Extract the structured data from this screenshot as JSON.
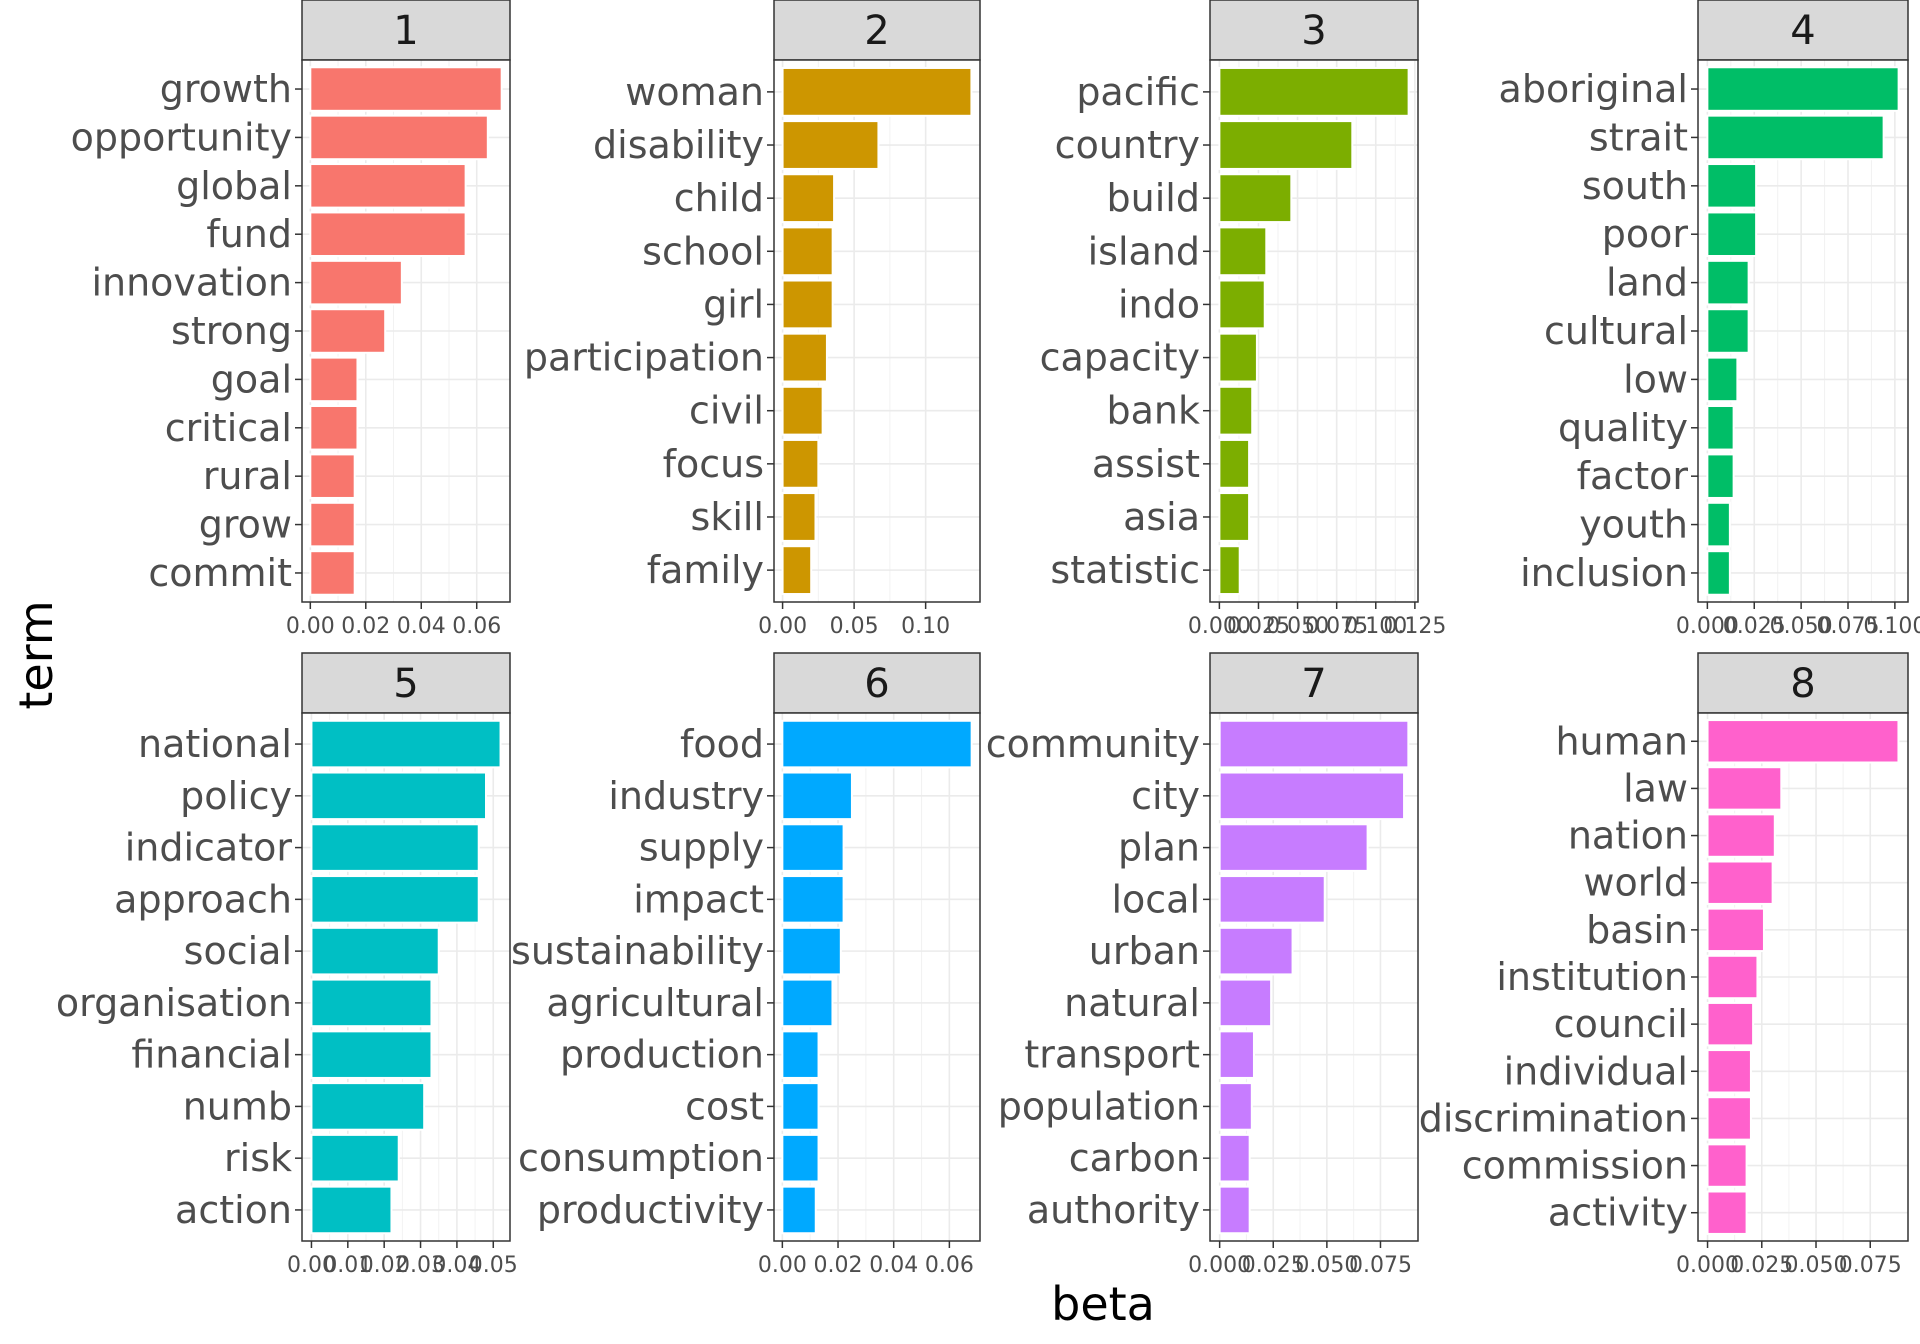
{
  "chart_data": {
    "type": "bar",
    "orientation": "horizontal",
    "layout": "facet-wrap 2 rows x 4 columns, independent scales",
    "xlabel": "beta",
    "ylabel": "term",
    "grid": true,
    "legend": "none",
    "facets": [
      {
        "label": "1",
        "color": "#F8766D",
        "categories": [
          "growth",
          "opportunity",
          "global",
          "fund",
          "innovation",
          "strong",
          "goal",
          "critical",
          "rural",
          "grow",
          "commit"
        ],
        "values": [
          0.069,
          0.064,
          0.056,
          0.056,
          0.033,
          0.027,
          0.017,
          0.017,
          0.016,
          0.016,
          0.016
        ],
        "xlim": [
          -0.003,
          0.072
        ],
        "xticks": [
          0,
          0.02,
          0.04,
          0.06
        ],
        "xtick_labels": [
          "0.00",
          "0.02",
          "0.04",
          "0.06"
        ]
      },
      {
        "label": "2",
        "color": "#CD9600",
        "categories": [
          "woman",
          "disability",
          "child",
          "school",
          "girl",
          "participation",
          "civil",
          "focus",
          "skill",
          "family"
        ],
        "values": [
          0.132,
          0.067,
          0.036,
          0.035,
          0.035,
          0.031,
          0.028,
          0.025,
          0.023,
          0.02
        ],
        "xlim": [
          -0.006,
          0.138
        ],
        "xticks": [
          0,
          0.05,
          0.1
        ],
        "xtick_labels": [
          "0.00",
          "0.05",
          "0.10"
        ]
      },
      {
        "label": "3",
        "color": "#7CAE00",
        "categories": [
          "pacific",
          "country",
          "build",
          "island",
          "indo",
          "capacity",
          "bank",
          "assist",
          "asia",
          "statistic"
        ],
        "values": [
          0.121,
          0.085,
          0.046,
          0.03,
          0.029,
          0.024,
          0.021,
          0.019,
          0.019,
          0.013
        ],
        "xlim": [
          -0.006,
          0.127
        ],
        "xticks": [
          0,
          0.025,
          0.05,
          0.075,
          0.1,
          0.125
        ],
        "xtick_labels": [
          "0.000",
          "0.025",
          "0.050",
          "0.075",
          "0.100",
          "0.125"
        ]
      },
      {
        "label": "4",
        "color": "#00BE67",
        "categories": [
          "aboriginal",
          "strait",
          "south",
          "poor",
          "land",
          "cultural",
          "low",
          "quality",
          "factor",
          "youth",
          "inclusion"
        ],
        "values": [
          0.102,
          0.094,
          0.026,
          0.026,
          0.022,
          0.022,
          0.016,
          0.014,
          0.014,
          0.012,
          0.012
        ],
        "xlim": [
          -0.005,
          0.107
        ],
        "xticks": [
          0,
          0.025,
          0.05,
          0.075,
          0.1
        ],
        "xtick_labels": [
          "0.000",
          "0.025",
          "0.050",
          "0.075",
          "0.100"
        ]
      },
      {
        "label": "5",
        "color": "#00BFC4",
        "categories": [
          "national",
          "policy",
          "indicator",
          "approach",
          "social",
          "organisation",
          "financial",
          "numb",
          "risk",
          "action"
        ],
        "values": [
          0.052,
          0.048,
          0.046,
          0.046,
          0.035,
          0.033,
          0.033,
          0.031,
          0.024,
          0.022
        ],
        "xlim": [
          -0.0026,
          0.0546
        ],
        "xticks": [
          0,
          0.01,
          0.02,
          0.03,
          0.04,
          0.05
        ],
        "xtick_labels": [
          "0.00",
          "0.01",
          "0.02",
          "0.03",
          "0.04",
          "0.05"
        ]
      },
      {
        "label": "6",
        "color": "#00A9FF",
        "categories": [
          "food",
          "industry",
          "supply",
          "impact",
          "sustainability",
          "agricultural",
          "production",
          "cost",
          "consumption",
          "productivity"
        ],
        "values": [
          0.068,
          0.025,
          0.022,
          0.022,
          0.021,
          0.018,
          0.013,
          0.013,
          0.013,
          0.012
        ],
        "xlim": [
          -0.003,
          0.071
        ],
        "xticks": [
          0,
          0.02,
          0.04,
          0.06
        ],
        "xtick_labels": [
          "0.00",
          "0.02",
          "0.04",
          "0.06"
        ]
      },
      {
        "label": "7",
        "color": "#C77CFF",
        "categories": [
          "community",
          "city",
          "plan",
          "local",
          "urban",
          "natural",
          "transport",
          "population",
          "carbon",
          "authority"
        ],
        "values": [
          0.088,
          0.086,
          0.069,
          0.049,
          0.034,
          0.024,
          0.016,
          0.015,
          0.014,
          0.014
        ],
        "xlim": [
          -0.0045,
          0.0925
        ],
        "xticks": [
          0,
          0.025,
          0.05,
          0.075
        ],
        "xtick_labels": [
          "0.000",
          "0.025",
          "0.050",
          "0.075"
        ]
      },
      {
        "label": "8",
        "color": "#FF61CC",
        "categories": [
          "human",
          "law",
          "nation",
          "world",
          "basin",
          "institution",
          "council",
          "individual",
          "discrimination",
          "commission",
          "activity"
        ],
        "values": [
          0.088,
          0.034,
          0.031,
          0.03,
          0.026,
          0.023,
          0.021,
          0.02,
          0.02,
          0.018,
          0.018
        ],
        "xlim": [
          -0.0044,
          0.0924
        ],
        "xticks": [
          0,
          0.025,
          0.05,
          0.075
        ],
        "xtick_labels": [
          "0.000",
          "0.025",
          "0.050",
          "0.075"
        ]
      }
    ]
  }
}
